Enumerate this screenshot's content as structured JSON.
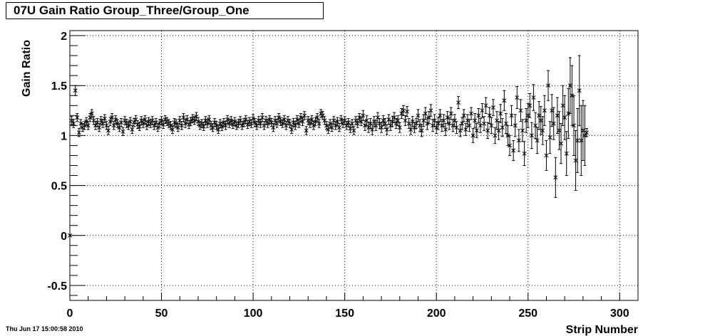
{
  "title": "07U Gain Ratio Group_Three/Group_One",
  "timestamp": "Thu Jun 17 15:00:58 2010",
  "chart_data": {
    "type": "scatter",
    "title": "07U Gain Ratio Group_Three/Group_One",
    "xlabel": "Strip Number",
    "ylabel": "Gain Ratio",
    "xlim": [
      0,
      310
    ],
    "ylim": [
      -0.65,
      2.05
    ],
    "xticks": [
      0,
      50,
      100,
      150,
      200,
      250,
      300
    ],
    "yticks": [
      -0.5,
      0,
      0.5,
      1,
      1.5,
      2
    ],
    "xtick_labels": [
      "0",
      "50",
      "100",
      "150",
      "200",
      "250",
      "300"
    ],
    "ytick_labels": [
      "-0.5",
      "0",
      "0.5",
      "1",
      "1.5",
      "2"
    ],
    "grid": true,
    "marker": "asterisk",
    "points": [
      [
        0,
        0,
        0
      ],
      [
        1,
        1.15,
        0.04
      ],
      [
        2,
        1.12,
        0.04
      ],
      [
        3,
        1.45,
        0.05
      ],
      [
        4,
        1.18,
        0.04
      ],
      [
        5,
        1.03,
        0.04
      ],
      [
        6,
        1.12,
        0.04
      ],
      [
        7,
        1.08,
        0.04
      ],
      [
        8,
        1.1,
        0.04
      ],
      [
        9,
        1.14,
        0.04
      ],
      [
        10,
        1.1,
        0.04
      ],
      [
        11,
        1.18,
        0.04
      ],
      [
        12,
        1.22,
        0.04
      ],
      [
        13,
        1.15,
        0.04
      ],
      [
        14,
        1.1,
        0.04
      ],
      [
        15,
        1.13,
        0.04
      ],
      [
        16,
        1.08,
        0.04
      ],
      [
        17,
        1.15,
        0.04
      ],
      [
        18,
        1.12,
        0.04
      ],
      [
        19,
        1.17,
        0.04
      ],
      [
        20,
        1.1,
        0.04
      ],
      [
        21,
        1.05,
        0.04
      ],
      [
        22,
        1.14,
        0.04
      ],
      [
        23,
        1.18,
        0.04
      ],
      [
        24,
        1.1,
        0.04
      ],
      [
        25,
        1.16,
        0.04
      ],
      [
        26,
        1.12,
        0.04
      ],
      [
        27,
        1.08,
        0.04
      ],
      [
        28,
        1.13,
        0.04
      ],
      [
        29,
        1.04,
        0.04
      ],
      [
        30,
        1.15,
        0.04
      ],
      [
        31,
        1.12,
        0.04
      ],
      [
        32,
        1.1,
        0.04
      ],
      [
        33,
        1.14,
        0.04
      ],
      [
        34,
        1.06,
        0.04
      ],
      [
        35,
        1.13,
        0.04
      ],
      [
        36,
        1.16,
        0.04
      ],
      [
        37,
        1.11,
        0.04
      ],
      [
        38,
        1.09,
        0.04
      ],
      [
        39,
        1.15,
        0.04
      ],
      [
        40,
        1.12,
        0.04
      ],
      [
        41,
        1.16,
        0.04
      ],
      [
        42,
        1.1,
        0.04
      ],
      [
        43,
        1.14,
        0.04
      ],
      [
        44,
        1.12,
        0.04
      ],
      [
        45,
        1.15,
        0.04
      ],
      [
        46,
        1.1,
        0.04
      ],
      [
        47,
        1.13,
        0.04
      ],
      [
        48,
        1.08,
        0.04
      ],
      [
        49,
        1.12,
        0.04
      ],
      [
        50,
        1.15,
        0.04
      ],
      [
        51,
        1.11,
        0.04
      ],
      [
        52,
        1.16,
        0.04
      ],
      [
        53,
        1.14,
        0.04
      ],
      [
        54,
        1.12,
        0.04
      ],
      [
        55,
        1.1,
        0.04
      ],
      [
        56,
        1.06,
        0.04
      ],
      [
        57,
        1.13,
        0.04
      ],
      [
        58,
        1.12,
        0.04
      ],
      [
        59,
        1.08,
        0.04
      ],
      [
        60,
        1.15,
        0.04
      ],
      [
        61,
        1.1,
        0.04
      ],
      [
        62,
        1.18,
        0.04
      ],
      [
        63,
        1.12,
        0.04
      ],
      [
        64,
        1.16,
        0.04
      ],
      [
        65,
        1.11,
        0.04
      ],
      [
        66,
        1.14,
        0.04
      ],
      [
        67,
        1.17,
        0.04
      ],
      [
        68,
        1.15,
        0.04
      ],
      [
        69,
        1.19,
        0.04
      ],
      [
        70,
        1.14,
        0.04
      ],
      [
        71,
        1.1,
        0.04
      ],
      [
        72,
        1.12,
        0.04
      ],
      [
        73,
        1.09,
        0.04
      ],
      [
        74,
        1.15,
        0.04
      ],
      [
        75,
        1.12,
        0.04
      ],
      [
        76,
        1.16,
        0.04
      ],
      [
        77,
        1.1,
        0.04
      ],
      [
        78,
        1.08,
        0.04
      ],
      [
        79,
        1.13,
        0.04
      ],
      [
        80,
        1.1,
        0.04
      ],
      [
        81,
        1.06,
        0.04
      ],
      [
        82,
        1.12,
        0.04
      ],
      [
        83,
        1.09,
        0.04
      ],
      [
        84,
        1.13,
        0.04
      ],
      [
        85,
        1.1,
        0.04
      ],
      [
        86,
        1.16,
        0.04
      ],
      [
        87,
        1.12,
        0.04
      ],
      [
        88,
        1.15,
        0.04
      ],
      [
        89,
        1.11,
        0.04
      ],
      [
        90,
        1.14,
        0.04
      ],
      [
        91,
        1.1,
        0.04
      ],
      [
        92,
        1.12,
        0.04
      ],
      [
        93,
        1.15,
        0.04
      ],
      [
        94,
        1.1,
        0.04
      ],
      [
        95,
        1.13,
        0.04
      ],
      [
        96,
        1.16,
        0.04
      ],
      [
        97,
        1.11,
        0.04
      ],
      [
        98,
        1.14,
        0.04
      ],
      [
        99,
        1.12,
        0.04
      ],
      [
        100,
        1.17,
        0.04
      ],
      [
        101,
        1.13,
        0.04
      ],
      [
        102,
        1.1,
        0.04
      ],
      [
        103,
        1.15,
        0.04
      ],
      [
        104,
        1.12,
        0.04
      ],
      [
        105,
        1.18,
        0.04
      ],
      [
        106,
        1.1,
        0.04
      ],
      [
        107,
        1.15,
        0.04
      ],
      [
        108,
        1.12,
        0.04
      ],
      [
        109,
        1.16,
        0.04
      ],
      [
        110,
        1.13,
        0.04
      ],
      [
        111,
        1.08,
        0.04
      ],
      [
        112,
        1.15,
        0.04
      ],
      [
        113,
        1.12,
        0.04
      ],
      [
        114,
        1.18,
        0.04
      ],
      [
        115,
        1.14,
        0.04
      ],
      [
        116,
        1.12,
        0.04
      ],
      [
        117,
        1.16,
        0.04
      ],
      [
        118,
        1.1,
        0.04
      ],
      [
        119,
        1.15,
        0.04
      ],
      [
        120,
        1.12,
        0.04
      ],
      [
        121,
        1.06,
        0.04
      ],
      [
        122,
        1.13,
        0.04
      ],
      [
        123,
        1.1,
        0.04
      ],
      [
        124,
        1.16,
        0.04
      ],
      [
        125,
        1.12,
        0.04
      ],
      [
        126,
        1.18,
        0.04
      ],
      [
        127,
        1.14,
        0.04
      ],
      [
        128,
        1.2,
        0.04
      ],
      [
        129,
        1.05,
        0.04
      ],
      [
        130,
        1.15,
        0.04
      ],
      [
        131,
        1.12,
        0.04
      ],
      [
        132,
        1.16,
        0.04
      ],
      [
        133,
        1.1,
        0.04
      ],
      [
        134,
        1.14,
        0.04
      ],
      [
        135,
        1.18,
        0.04
      ],
      [
        136,
        1.12,
        0.04
      ],
      [
        137,
        1.22,
        0.04
      ],
      [
        138,
        1.2,
        0.04
      ],
      [
        139,
        1.15,
        0.04
      ],
      [
        140,
        1.1,
        0.04
      ],
      [
        141,
        1.06,
        0.04
      ],
      [
        142,
        1.12,
        0.04
      ],
      [
        143,
        1.08,
        0.04
      ],
      [
        144,
        1.15,
        0.04
      ],
      [
        145,
        1.1,
        0.04
      ],
      [
        146,
        1.14,
        0.04
      ],
      [
        147,
        1.08,
        0.04
      ],
      [
        148,
        1.16,
        0.04
      ],
      [
        149,
        1.12,
        0.04
      ],
      [
        150,
        1.15,
        0.04
      ],
      [
        151,
        1.1,
        0.04
      ],
      [
        152,
        1.13,
        0.04
      ],
      [
        153,
        1.07,
        0.04
      ],
      [
        154,
        1.12,
        0.04
      ],
      [
        155,
        1.05,
        0.04
      ],
      [
        156,
        1.15,
        0.04
      ],
      [
        157,
        1.12,
        0.04
      ],
      [
        158,
        1.18,
        0.04
      ],
      [
        159,
        1.14,
        0.04
      ],
      [
        160,
        1.2,
        0.05
      ],
      [
        161,
        1.1,
        0.05
      ],
      [
        162,
        1.15,
        0.05
      ],
      [
        163,
        1.08,
        0.05
      ],
      [
        164,
        1.12,
        0.05
      ],
      [
        165,
        1.06,
        0.05
      ],
      [
        166,
        1.14,
        0.05
      ],
      [
        167,
        1.1,
        0.05
      ],
      [
        168,
        1.18,
        0.05
      ],
      [
        169,
        1.12,
        0.05
      ],
      [
        170,
        1.08,
        0.05
      ],
      [
        171,
        1.15,
        0.05
      ],
      [
        172,
        1.12,
        0.05
      ],
      [
        173,
        1.06,
        0.05
      ],
      [
        174,
        1.16,
        0.05
      ],
      [
        175,
        1.1,
        0.05
      ],
      [
        176,
        1.14,
        0.05
      ],
      [
        177,
        1.18,
        0.05
      ],
      [
        178,
        1.12,
        0.05
      ],
      [
        179,
        1.15,
        0.05
      ],
      [
        180,
        1.08,
        0.05
      ],
      [
        181,
        1.22,
        0.05
      ],
      [
        182,
        1.25,
        0.05
      ],
      [
        183,
        1.15,
        0.05
      ],
      [
        184,
        1.24,
        0.05
      ],
      [
        185,
        1.12,
        0.05
      ],
      [
        186,
        1.06,
        0.05
      ],
      [
        187,
        1.14,
        0.05
      ],
      [
        188,
        1.08,
        0.05
      ],
      [
        189,
        1.12,
        0.05
      ],
      [
        190,
        1.2,
        0.06
      ],
      [
        191,
        1.1,
        0.06
      ],
      [
        192,
        1.05,
        0.06
      ],
      [
        193,
        1.15,
        0.06
      ],
      [
        194,
        1.22,
        0.06
      ],
      [
        195,
        1.12,
        0.06
      ],
      [
        196,
        1.18,
        0.06
      ],
      [
        197,
        1.25,
        0.06
      ],
      [
        198,
        1.1,
        0.06
      ],
      [
        199,
        1.15,
        0.06
      ],
      [
        200,
        1.08,
        0.06
      ],
      [
        201,
        1.12,
        0.06
      ],
      [
        202,
        1.2,
        0.06
      ],
      [
        203,
        1.1,
        0.06
      ],
      [
        204,
        1.15,
        0.06
      ],
      [
        205,
        1.06,
        0.06
      ],
      [
        206,
        1.18,
        0.06
      ],
      [
        207,
        1.12,
        0.06
      ],
      [
        208,
        1.22,
        0.06
      ],
      [
        209,
        1.1,
        0.06
      ],
      [
        210,
        1.15,
        0.06
      ],
      [
        211,
        1.08,
        0.06
      ],
      [
        212,
        1.33,
        0.06
      ],
      [
        213,
        1.05,
        0.06
      ],
      [
        214,
        1.12,
        0.06
      ],
      [
        215,
        1.2,
        0.06
      ],
      [
        216,
        1.06,
        0.06
      ],
      [
        217,
        1.15,
        0.06
      ],
      [
        218,
        1.1,
        0.06
      ],
      [
        219,
        1.22,
        0.06
      ],
      [
        220,
        1.0,
        0.07
      ],
      [
        221,
        1.15,
        0.07
      ],
      [
        222,
        1.05,
        0.07
      ],
      [
        223,
        1.2,
        0.07
      ],
      [
        224,
        1.1,
        0.07
      ],
      [
        225,
        1.25,
        0.07
      ],
      [
        226,
        1.12,
        0.07
      ],
      [
        227,
        1.3,
        0.08
      ],
      [
        228,
        1.05,
        0.08
      ],
      [
        229,
        1.2,
        0.08
      ],
      [
        230,
        1.1,
        0.08
      ],
      [
        231,
        1.28,
        0.08
      ],
      [
        232,
        1.0,
        0.08
      ],
      [
        233,
        1.15,
        0.09
      ],
      [
        234,
        1.05,
        0.09
      ],
      [
        235,
        1.22,
        0.09
      ],
      [
        236,
        1.08,
        0.09
      ],
      [
        237,
        1.35,
        0.1
      ],
      [
        238,
        1.12,
        0.1
      ],
      [
        239,
        1.0,
        0.1
      ],
      [
        240,
        0.9,
        0.1
      ],
      [
        241,
        1.2,
        0.1
      ],
      [
        242,
        0.85,
        0.1
      ],
      [
        243,
        1.1,
        0.11
      ],
      [
        244,
        1.38,
        0.11
      ],
      [
        245,
        0.95,
        0.11
      ],
      [
        246,
        1.25,
        0.11
      ],
      [
        247,
        1.05,
        0.11
      ],
      [
        248,
        0.82,
        0.12
      ],
      [
        249,
        1.15,
        0.12
      ],
      [
        250,
        1.2,
        0.12
      ],
      [
        251,
        1.3,
        0.12
      ],
      [
        252,
        1.0,
        0.13
      ],
      [
        253,
        1.38,
        0.13
      ],
      [
        254,
        1.1,
        0.13
      ],
      [
        255,
        0.95,
        0.13
      ],
      [
        256,
        1.2,
        0.14
      ],
      [
        257,
        1.15,
        0.14
      ],
      [
        258,
        1.05,
        0.14
      ],
      [
        259,
        1.25,
        0.15
      ],
      [
        260,
        0.8,
        0.15
      ],
      [
        261,
        1.5,
        0.15
      ],
      [
        262,
        0.98,
        0.16
      ],
      [
        263,
        1.25,
        0.16
      ],
      [
        264,
        1.12,
        0.16
      ],
      [
        265,
        0.58,
        0.2
      ],
      [
        266,
        1.2,
        0.18
      ],
      [
        267,
        1.05,
        0.19
      ],
      [
        268,
        0.92,
        0.2
      ],
      [
        269,
        1.3,
        0.2
      ],
      [
        270,
        1.18,
        0.22
      ],
      [
        271,
        0.82,
        0.22
      ],
      [
        272,
        1.22,
        0.25
      ],
      [
        273,
        1.5,
        0.28
      ],
      [
        274,
        1.4,
        0.3
      ],
      [
        275,
        1.1,
        0.3
      ],
      [
        276,
        0.75,
        0.3
      ],
      [
        277,
        0.95,
        0.32
      ],
      [
        278,
        1.45,
        0.35
      ],
      [
        279,
        0.95,
        0.35
      ],
      [
        280,
        1.05,
        0.3
      ],
      [
        281,
        1.0,
        0.3
      ],
      [
        282,
        1.03,
        0.04
      ]
    ]
  }
}
